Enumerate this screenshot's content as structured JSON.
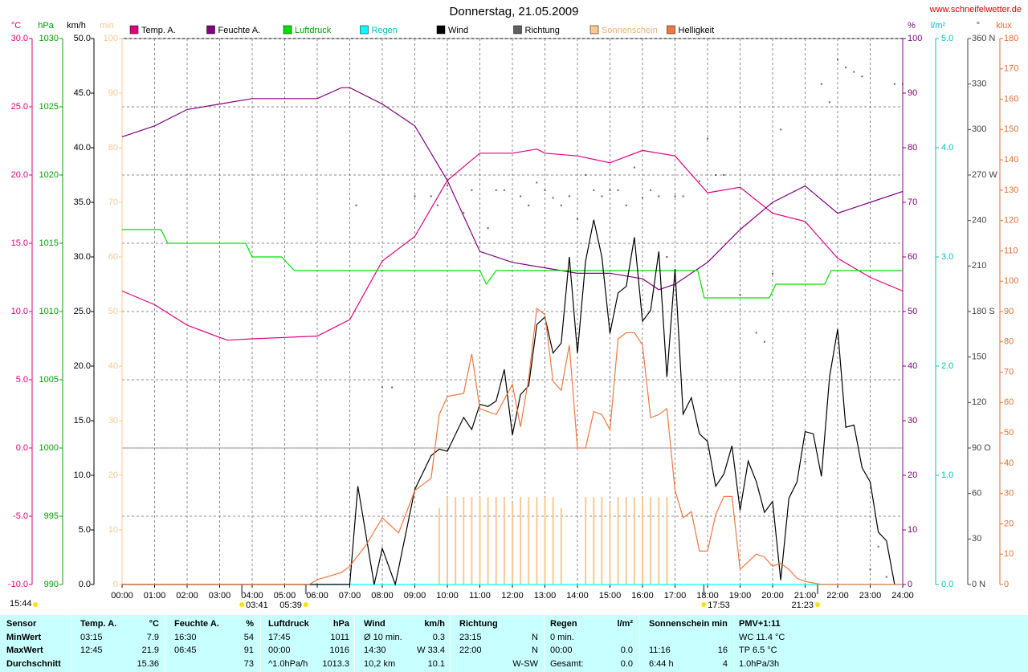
{
  "title": "Donnerstag, 21.05.2009",
  "site": "www.schneifelwetter.de",
  "chart_data": {
    "type": "line",
    "grid": true,
    "xlim": [
      0,
      24
    ],
    "xticks": [
      {
        "value": 0,
        "label": "00:00"
      },
      {
        "value": 1,
        "label": "01:00"
      },
      {
        "value": 2,
        "label": "02:00"
      },
      {
        "value": 3,
        "label": "03:00"
      },
      {
        "value": 4,
        "label": "04:00"
      },
      {
        "value": 5,
        "label": "05:00"
      },
      {
        "value": 6,
        "label": "06:00"
      },
      {
        "value": 7,
        "label": "07:00"
      },
      {
        "value": 8,
        "label": "08:00"
      },
      {
        "value": 9,
        "label": "09:00"
      },
      {
        "value": 10,
        "label": "10:00"
      },
      {
        "value": 11,
        "label": "11:00"
      },
      {
        "value": 12,
        "label": "12:00"
      },
      {
        "value": 13,
        "label": "13:00"
      },
      {
        "value": 14,
        "label": "14:00"
      },
      {
        "value": 15,
        "label": "15:00"
      },
      {
        "value": 16,
        "label": "16:00"
      },
      {
        "value": 17,
        "label": "17:00"
      },
      {
        "value": 18,
        "label": "18:00"
      },
      {
        "value": 19,
        "label": "19:00"
      },
      {
        "value": 20,
        "label": "20:00"
      },
      {
        "value": 21,
        "label": "21:00"
      },
      {
        "value": 22,
        "label": "22:00"
      },
      {
        "value": 23,
        "label": "23:00"
      },
      {
        "value": 24,
        "label": "24:00"
      }
    ],
    "axes": [
      {
        "unit": "°C",
        "color": "#e0007f",
        "lim": [
          -10,
          30
        ],
        "ticks": [
          {
            "value": 30,
            "label": "30.0"
          },
          {
            "value": 25,
            "label": "25.0"
          },
          {
            "value": 20,
            "label": "20.0"
          },
          {
            "value": 15,
            "label": "15.0"
          },
          {
            "value": 10,
            "label": "10.0"
          },
          {
            "value": 5,
            "label": "5.0"
          },
          {
            "value": 0,
            "label": "0.0"
          },
          {
            "value": -5,
            "label": "-5.0"
          },
          {
            "value": -10,
            "label": "-10.0"
          }
        ]
      },
      {
        "unit": "hPa",
        "color": "#00a000",
        "lim": [
          990,
          1030
        ],
        "ticks": [
          1030,
          1025,
          1020,
          1015,
          1010,
          1005,
          1000,
          995,
          990
        ]
      },
      {
        "unit": "km/h",
        "color": "#000000",
        "lim": [
          0,
          50
        ],
        "ticks": [
          {
            "value": 50,
            "label": "50.0"
          },
          {
            "value": 45,
            "label": "45.0"
          },
          {
            "value": 40,
            "label": "40.0"
          },
          {
            "value": 35,
            "label": "35.0"
          },
          {
            "value": 30,
            "label": "30.0"
          },
          {
            "value": 25,
            "label": "25.0"
          },
          {
            "value": 20,
            "label": "20.0"
          },
          {
            "value": 15,
            "label": "15.0"
          },
          {
            "value": 10,
            "label": "10.0"
          },
          {
            "value": 5,
            "label": "5.0"
          },
          {
            "value": 0,
            "label": "0.0"
          }
        ]
      },
      {
        "unit": "min",
        "color": "#f8c890",
        "lim": [
          0,
          100
        ],
        "ticks": [
          100,
          90,
          80,
          70,
          60,
          50,
          40,
          30,
          20,
          10,
          0
        ]
      },
      {
        "unit": "%",
        "color": "#800080",
        "lim": [
          0,
          100
        ],
        "ticks": [
          100,
          90,
          80,
          70,
          60,
          50,
          40,
          30,
          20,
          10,
          0
        ]
      },
      {
        "unit": "l/m²",
        "color": "#00c0c0",
        "lim": [
          0,
          5
        ],
        "ticks": [
          {
            "value": 5,
            "label": "5.0"
          },
          {
            "value": 4,
            "label": "4.0"
          },
          {
            "value": 3,
            "label": "3.0"
          },
          {
            "value": 2,
            "label": "2.0"
          },
          {
            "value": 1,
            "label": "1.0"
          },
          {
            "value": 0,
            "label": "0.0"
          }
        ]
      },
      {
        "unit": "°",
        "color": "#404040",
        "lim": [
          0,
          360
        ],
        "ticks": [
          {
            "value": 360,
            "label": "360 N"
          },
          330,
          300,
          {
            "value": 270,
            "label": "270 W"
          },
          240,
          210,
          {
            "value": 180,
            "label": "180 S"
          },
          150,
          120,
          {
            "value": 90,
            "label": "90 O"
          },
          60,
          30,
          {
            "value": 0,
            "label": "0 N"
          }
        ]
      },
      {
        "unit": "klux",
        "color": "#e07030",
        "lim": [
          0,
          180
        ],
        "ticks": [
          180,
          170,
          160,
          150,
          140,
          130,
          120,
          110,
          100,
          90,
          80,
          70,
          60,
          50,
          40,
          30,
          20,
          10,
          0
        ]
      }
    ],
    "series": [
      {
        "name": "Temp. A.",
        "axis": "°C",
        "style": "line",
        "color": "#e0007f",
        "x": [
          0,
          1,
          2,
          3,
          3.25,
          4,
          5,
          6,
          7,
          8,
          9,
          10,
          11,
          12,
          12.75,
          13,
          14,
          15,
          16,
          17,
          18,
          19,
          20,
          21,
          22,
          23,
          24
        ],
        "values": [
          11.5,
          10.5,
          9.0,
          8.1,
          7.9,
          8.0,
          8.1,
          8.2,
          9.4,
          13.7,
          15.5,
          19.6,
          21.6,
          21.6,
          21.9,
          21.6,
          21.4,
          20.9,
          21.8,
          21.4,
          18.7,
          19.1,
          17.2,
          16.6,
          13.9,
          12.5,
          11.5
        ]
      },
      {
        "name": "Feuchte A.",
        "axis": "%",
        "style": "line",
        "color": "#800080",
        "x": [
          0,
          1,
          2,
          3,
          4,
          5,
          6,
          6.75,
          7,
          8,
          9,
          10,
          11,
          12,
          13,
          14,
          15,
          16,
          16.5,
          17,
          18,
          19,
          20,
          21,
          22,
          23,
          24
        ],
        "values": [
          82,
          84,
          87,
          88,
          89,
          89,
          89,
          91,
          91,
          88,
          84,
          74,
          61,
          59,
          58,
          57,
          57,
          56,
          54,
          55,
          59,
          65,
          70,
          73,
          68,
          70,
          72
        ]
      },
      {
        "name": "Luftdruck",
        "axis": "hPa",
        "style": "line",
        "color": "#00e000",
        "x": [
          0,
          1.2,
          1.4,
          3.8,
          4.0,
          4.9,
          5.3,
          11.0,
          11.2,
          11.5,
          17.7,
          17.9,
          19.9,
          20.1,
          21.6,
          21.8,
          24
        ],
        "values": [
          1016,
          1016,
          1015,
          1015,
          1014,
          1014,
          1013,
          1013,
          1012,
          1013,
          1013,
          1011,
          1011,
          1012,
          1012,
          1013,
          1013
        ]
      },
      {
        "name": "Regen",
        "axis": "l/m²",
        "style": "line",
        "color": "#00ffff",
        "x": [
          0,
          24
        ],
        "values": [
          0,
          0
        ]
      },
      {
        "name": "Wind",
        "axis": "km/h",
        "style": "line",
        "color": "#000000",
        "x": [
          0,
          7,
          7.25,
          7.75,
          8,
          8.4,
          9,
          9.5,
          9.75,
          10,
          10.5,
          10.75,
          11,
          11.25,
          11.5,
          11.75,
          12,
          12.25,
          12.5,
          12.75,
          13,
          13.25,
          13.5,
          13.75,
          14,
          14.25,
          14.5,
          14.75,
          15,
          15.25,
          15.5,
          15.75,
          16,
          16.25,
          16.5,
          16.75,
          17,
          17.25,
          17.5,
          17.75,
          18,
          18.25,
          18.5,
          18.75,
          19,
          19.25,
          19.5,
          19.75,
          20,
          20.25,
          20.5,
          20.75,
          21,
          21.25,
          21.5,
          21.75,
          22,
          22.25,
          22.5,
          22.75,
          23,
          23.25,
          23.5,
          23.75
        ],
        "values": [
          0,
          0,
          9.0,
          0,
          3.3,
          0,
          8.7,
          11.8,
          12.4,
          12.2,
          15.3,
          14.2,
          16.5,
          16.3,
          16.8,
          19.7,
          13.7,
          17.4,
          18.2,
          23.8,
          24.5,
          21.2,
          22.1,
          30.0,
          21.2,
          29.6,
          33.4,
          30.0,
          23.0,
          26.7,
          27.3,
          31.8,
          24.1,
          25.1,
          30.5,
          19.0,
          28.9,
          15.6,
          17.1,
          13.8,
          13.1,
          9.0,
          10.1,
          12.7,
          6.8,
          11.3,
          9.4,
          6.6,
          7.6,
          0.4,
          7.9,
          9.4,
          14.0,
          13.8,
          9.9,
          19.0,
          23.4,
          14.4,
          14.6,
          10.7,
          9.4,
          4.8,
          4.0,
          0
        ]
      },
      {
        "name": "Richtung",
        "axis": "°",
        "style": "dots",
        "color": "#606060",
        "x": [
          7.2,
          8,
          8.3,
          9,
          9.5,
          9.7,
          10,
          10.5,
          10.75,
          11.25,
          11.5,
          11.75,
          12.25,
          12.5,
          12.75,
          13,
          13.25,
          13.5,
          13.75,
          14,
          14.25,
          14.5,
          14.75,
          15,
          15.25,
          15.5,
          15.75,
          16,
          16.25,
          16.5,
          16.75,
          17,
          17.25,
          17.75,
          18,
          18.25,
          18.5,
          19,
          19.5,
          19.75,
          20,
          20.25,
          21,
          21.5,
          21.75,
          22,
          22.25,
          22.5,
          22.75,
          23,
          23.25,
          23.5,
          23.75,
          24
        ],
        "values": [
          250,
          130,
          130,
          256,
          256,
          250,
          263,
          245,
          260,
          235,
          260,
          260,
          256,
          250,
          265,
          260,
          255,
          250,
          256,
          241,
          270,
          260,
          256,
          260,
          260,
          250,
          275,
          255,
          260,
          256,
          216,
          256,
          256,
          266,
          294,
          270,
          270,
          191,
          166,
          160,
          205,
          300,
          81,
          330,
          318,
          346,
          341,
          338,
          335,
          10,
          25,
          5,
          330,
          330
        ]
      },
      {
        "name": "Sonnenschein",
        "axis": "min",
        "style": "bars",
        "color": "#ffc890",
        "x": [
          9.75,
          10,
          10.25,
          10.5,
          10.75,
          11,
          11.25,
          11.5,
          11.75,
          12,
          12.25,
          12.5,
          12.75,
          13,
          13.25,
          13.5,
          14.25,
          14.5,
          14.75,
          15,
          15.25,
          15.5,
          15.75,
          16,
          16.25,
          16.5,
          16.75
        ],
        "values": [
          14,
          16,
          16,
          16,
          16,
          16,
          16,
          16,
          16,
          15,
          16,
          16,
          16,
          16,
          16,
          14,
          16,
          16,
          16,
          15,
          16,
          16,
          16,
          16,
          16,
          16,
          16
        ]
      },
      {
        "name": "Helligkeit",
        "axis": "klux",
        "style": "line",
        "color": "#f07840",
        "x": [
          0,
          5.75,
          6,
          6.75,
          7,
          7.5,
          8,
          8.5,
          9,
          9.5,
          9.75,
          10,
          10.5,
          10.75,
          11,
          11.5,
          12,
          12.25,
          12.5,
          12.75,
          13,
          13.25,
          13.5,
          13.75,
          14,
          14.25,
          14.5,
          14.75,
          15,
          15.25,
          15.5,
          15.75,
          16,
          16.25,
          16.5,
          16.75,
          17,
          17.25,
          17.5,
          17.75,
          18,
          18.25,
          18.5,
          18.75,
          19,
          19.5,
          19.75,
          20,
          20.25,
          20.5,
          20.75,
          21,
          21.5,
          24
        ],
        "values": [
          0,
          0,
          1.6,
          4,
          6,
          13,
          22,
          17,
          31,
          35,
          56,
          62,
          63,
          76,
          58,
          56,
          66,
          52,
          68,
          91,
          89,
          67,
          64,
          79,
          45,
          45,
          57,
          56,
          51,
          81,
          83,
          83,
          79,
          55,
          56,
          58,
          31,
          22,
          24,
          11,
          11,
          23,
          29,
          29,
          5,
          10,
          9,
          6,
          7,
          5,
          2,
          1,
          0,
          0
        ]
      }
    ],
    "markers": [
      "03:41",
      "05:39",
      "17:53",
      "21:23"
    ],
    "corner_time": "15:44"
  },
  "table": {
    "rows": [
      [
        "Sensor",
        "Temp. A.",
        "°C",
        "Feuchte A.",
        "%",
        "Luftdruck",
        "hPa",
        "Wind",
        "km/h",
        "Richtung",
        null,
        "Regen",
        "l/m²",
        "Sonnenschein min",
        null,
        "PMV+1:11"
      ],
      [
        "MinWert",
        "03:15",
        "7.9",
        "16:30",
        "54",
        "17:45",
        "1011",
        "Ø 10 min.",
        "0.3",
        "23:15",
        "N",
        "0 min.",
        null,
        null,
        null,
        "WC 11.4 °C"
      ],
      [
        "MaxWert",
        "12:45",
        "21.9",
        "06:45",
        "91",
        "00:00",
        "1016",
        "14:30",
        "W 33.4",
        "22:00",
        "N",
        "00:00",
        "0.0",
        "11:16",
        "16",
        "TP 6.5 °C"
      ],
      [
        "Durchschnitt",
        null,
        "15.36",
        null,
        "73",
        "^1.0hPa/h",
        "1013.3",
        "10,2 km",
        "10.1",
        null,
        "W-SW",
        "Gesamt:",
        "0.0",
        "6:44 h",
        "4",
        "1.0hPa/3h"
      ]
    ]
  }
}
